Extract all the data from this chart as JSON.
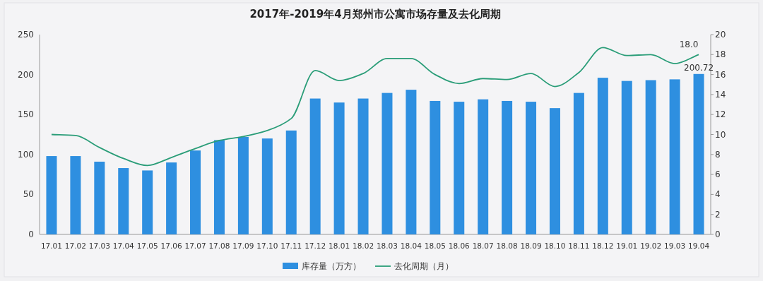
{
  "chart_data": {
    "type": "bar",
    "title": "2017年-2019年4月郑州市公寓市场存量及去化周期",
    "categories": [
      "17.01",
      "17.02",
      "17.03",
      "17.04",
      "17.05",
      "17.06",
      "17.07",
      "17.08",
      "17.09",
      "17.10",
      "17.11",
      "17.12",
      "18.01",
      "18.02",
      "18.03",
      "18.04",
      "18.05",
      "18.06",
      "18.07",
      "18.08",
      "18.09",
      "18.10",
      "18.11",
      "18.12",
      "19.01",
      "19.02",
      "19.03",
      "19.04"
    ],
    "series": [
      {
        "name": "库存量（万方）",
        "color": "#2e8fe0",
        "values": [
          98,
          98,
          91,
          83,
          80,
          90,
          105,
          118,
          122,
          120,
          130,
          170,
          165,
          170,
          177,
          181,
          167,
          166,
          169,
          167,
          166,
          158,
          177,
          196,
          192,
          193,
          194,
          200.72
        ],
        "value_labels": [
          null,
          null,
          null,
          null,
          null,
          null,
          null,
          null,
          null,
          null,
          null,
          null,
          null,
          null,
          null,
          null,
          null,
          null,
          null,
          null,
          null,
          null,
          null,
          null,
          null,
          null,
          null,
          "200.72"
        ]
      },
      {
        "name": "去化周期（月）",
        "type": "line",
        "axis": "y2",
        "color": "#2a9d78",
        "values": [
          10.0,
          9.9,
          8.7,
          7.6,
          6.9,
          7.7,
          8.6,
          9.4,
          9.8,
          10.4,
          11.6,
          16.4,
          15.4,
          16.1,
          17.6,
          17.6,
          16.0,
          15.1,
          15.6,
          15.5,
          16.1,
          14.8,
          16.2,
          18.7,
          17.9,
          18.0,
          17.1,
          18.0
        ],
        "value_labels": [
          null,
          null,
          null,
          null,
          null,
          null,
          null,
          null,
          null,
          null,
          null,
          null,
          null,
          null,
          null,
          null,
          null,
          null,
          null,
          null,
          null,
          null,
          null,
          null,
          null,
          null,
          null,
          "18.0"
        ]
      }
    ],
    "ylim": [
      0,
      250
    ],
    "yticks": [
      0,
      50,
      100,
      150,
      200,
      250
    ],
    "y2lim": [
      0,
      20
    ],
    "y2ticks": [
      0,
      2,
      4,
      6,
      8,
      10,
      12,
      14,
      16,
      18,
      20
    ],
    "legend": "bottom",
    "grid": false,
    "marker": "none"
  }
}
